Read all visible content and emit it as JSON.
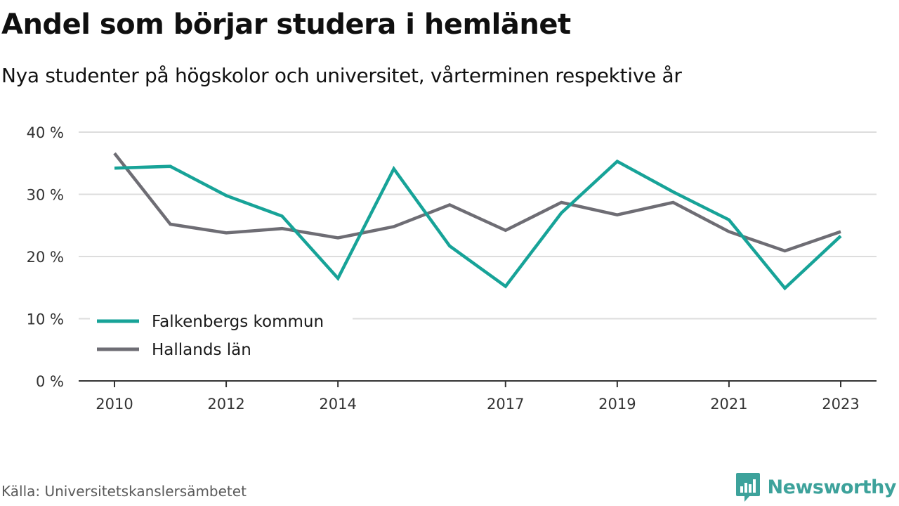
{
  "header": {
    "title": "Andel som börjar studera i hemlänet",
    "subtitle": "Nya studenter på högskolor och universitet, vårterminen respektive år"
  },
  "footer": {
    "source": "Källa: Universitetskanslersämbetet",
    "brand": "Newsworthy",
    "brand_icon": "bar-chart-speech-bubble-icon",
    "brand_color": "#3da29b"
  },
  "chart_data": {
    "type": "line",
    "title": "Andel som börjar studera i hemlänet",
    "subtitle": "Nya studenter på högskolor och universitet, vårterminen respektive år",
    "xlabel": "",
    "ylabel": "",
    "x": [
      2010,
      2011,
      2012,
      2013,
      2014,
      2015,
      2016,
      2017,
      2018,
      2019,
      2020,
      2021,
      2022,
      2023
    ],
    "x_ticks": [
      "2010",
      "2012",
      "2014",
      "2017",
      "2019",
      "2021",
      "2023"
    ],
    "y_ticks": [
      0,
      10,
      20,
      30,
      40
    ],
    "y_tick_labels": [
      "0 %",
      "10 %",
      "20 %",
      "30 %",
      "40 %"
    ],
    "ylim": [
      0,
      40
    ],
    "grid": "horizontal",
    "legend_position": "bottom-left",
    "series": [
      {
        "name": "Falkenbergs kommun",
        "color": "#17a398",
        "values": [
          34.2,
          34.5,
          29.8,
          26.5,
          16.5,
          34.1,
          21.7,
          15.2,
          27.0,
          35.3,
          30.4,
          25.9,
          14.9,
          23.3
        ]
      },
      {
        "name": "Hallands län",
        "color": "#6e6d74",
        "values": [
          36.6,
          25.2,
          23.8,
          24.5,
          23.0,
          24.8,
          28.3,
          24.2,
          28.7,
          26.7,
          28.7,
          24.0,
          20.9,
          24.0
        ]
      }
    ]
  }
}
